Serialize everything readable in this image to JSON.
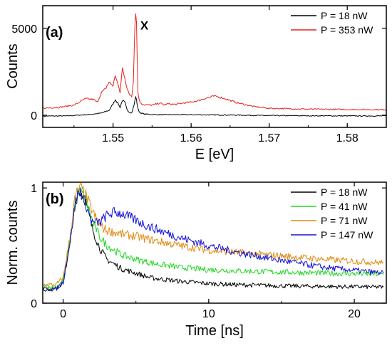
{
  "chart_data": [
    {
      "type": "line",
      "panel_label": "(a)",
      "xlabel": "E [eV]",
      "ylabel": "Counts",
      "xlim": [
        1.541,
        1.585
      ],
      "ylim": [
        -700,
        6300
      ],
      "x_ticks": [
        1.55,
        1.56,
        1.57,
        1.58
      ],
      "x_tick_labels": [
        "1.55",
        "1.56",
        "1.57",
        "1.58"
      ],
      "y_ticks": [
        0,
        5000
      ],
      "y_tick_labels": [
        "0",
        "5000"
      ],
      "legend_position": "top-right",
      "annotations": [
        {
          "text": "X",
          "x": 1.5535,
          "y": 5100
        }
      ],
      "series": [
        {
          "name": "P = 18 nW",
          "color": "#000000",
          "x": [
            1.541,
            1.544,
            1.547,
            1.5485,
            1.5495,
            1.55,
            1.5503,
            1.5506,
            1.5509,
            1.5512,
            1.5515,
            1.5518,
            1.5521,
            1.5524,
            1.5527,
            1.5529,
            1.5531,
            1.5533,
            1.5536,
            1.554,
            1.555,
            1.556,
            1.56,
            1.565,
            1.57,
            1.575,
            1.58,
            1.585
          ],
          "values": [
            -50,
            -40,
            40,
            120,
            280,
            650,
            900,
            700,
            450,
            850,
            750,
            300,
            180,
            140,
            600,
            1100,
            600,
            220,
            120,
            70,
            40,
            30,
            30,
            10,
            -20,
            -30,
            -40,
            -40
          ]
        },
        {
          "name": "P = 353 nW",
          "color": "#e8211c",
          "x": [
            1.541,
            1.543,
            1.545,
            1.5465,
            1.5475,
            1.548,
            1.5485,
            1.549,
            1.5495,
            1.55,
            1.5503,
            1.5506,
            1.5509,
            1.5512,
            1.5515,
            1.5518,
            1.5521,
            1.5524,
            1.5526,
            1.5528,
            1.5529,
            1.553,
            1.5531,
            1.5532,
            1.5534,
            1.5537,
            1.554,
            1.555,
            1.556,
            1.5565,
            1.557,
            1.558,
            1.559,
            1.56,
            1.561,
            1.562,
            1.563,
            1.564,
            1.566,
            1.568,
            1.57,
            1.575,
            1.58,
            1.585
          ],
          "values": [
            400,
            450,
            580,
            950,
            900,
            750,
            1300,
            1500,
            1900,
            1700,
            2300,
            1800,
            1300,
            2700,
            2200,
            1500,
            1200,
            1100,
            2000,
            5200,
            6000,
            5300,
            3200,
            1300,
            800,
            650,
            600,
            580,
            700,
            600,
            650,
            620,
            700,
            750,
            850,
            1000,
            1100,
            1000,
            700,
            500,
            400,
            350,
            330,
            320
          ]
        }
      ]
    },
    {
      "type": "line",
      "panel_label": "(b)",
      "xlabel": "Time [ns]",
      "ylabel": "Norm. counts",
      "xlim": [
        -1.4,
        22.2
      ],
      "ylim": [
        0,
        1.05
      ],
      "x_ticks": [
        0,
        10,
        20
      ],
      "x_tick_labels": [
        "0",
        "10",
        "20"
      ],
      "y_ticks": [
        0,
        1
      ],
      "y_tick_labels": [
        "0",
        "1"
      ],
      "legend_position": "top-right",
      "series": [
        {
          "name": "P = 18 nW",
          "color": "#000000",
          "x": [
            -1.4,
            -0.5,
            0,
            0.5,
            0.8,
            1.0,
            1.2,
            1.5,
            2,
            2.5,
            3,
            4,
            5,
            6,
            8,
            10,
            12,
            15,
            18,
            22
          ],
          "values": [
            0.12,
            0.12,
            0.18,
            0.55,
            0.85,
            0.95,
            0.97,
            0.9,
            0.65,
            0.48,
            0.38,
            0.3,
            0.26,
            0.22,
            0.19,
            0.17,
            0.16,
            0.15,
            0.145,
            0.14
          ]
        },
        {
          "name": "P = 41 nW",
          "color": "#1ed81e",
          "x": [
            -1.4,
            -0.5,
            0,
            0.5,
            0.8,
            1.0,
            1.2,
            1.5,
            2,
            2.5,
            3,
            4,
            5,
            6,
            8,
            10,
            12,
            15,
            18,
            22
          ],
          "values": [
            0.14,
            0.14,
            0.2,
            0.55,
            0.85,
            0.95,
            0.97,
            0.92,
            0.72,
            0.58,
            0.5,
            0.42,
            0.38,
            0.35,
            0.31,
            0.29,
            0.28,
            0.27,
            0.26,
            0.25
          ]
        },
        {
          "name": "P = 71 nW",
          "color": "#e08a10",
          "x": [
            -1.4,
            -0.5,
            0,
            0.5,
            0.8,
            1.0,
            1.2,
            1.5,
            2,
            2.5,
            3,
            4,
            5,
            6,
            8,
            10,
            12,
            15,
            18,
            22
          ],
          "values": [
            0.16,
            0.16,
            0.22,
            0.6,
            0.9,
            0.98,
            1.0,
            0.95,
            0.8,
            0.68,
            0.63,
            0.6,
            0.58,
            0.55,
            0.5,
            0.46,
            0.44,
            0.41,
            0.38,
            0.35
          ]
        },
        {
          "name": "P = 147 nW",
          "color": "#1414d8",
          "x": [
            -1.4,
            -0.5,
            0,
            0.5,
            0.8,
            1.0,
            1.2,
            1.5,
            2,
            2.5,
            3,
            3.5,
            4,
            5,
            6,
            8,
            10,
            12,
            15,
            18,
            22
          ],
          "values": [
            0.12,
            0.12,
            0.18,
            0.55,
            0.85,
            0.95,
            0.97,
            0.88,
            0.7,
            0.7,
            0.76,
            0.79,
            0.78,
            0.72,
            0.66,
            0.57,
            0.5,
            0.44,
            0.37,
            0.31,
            0.26
          ]
        }
      ]
    }
  ]
}
